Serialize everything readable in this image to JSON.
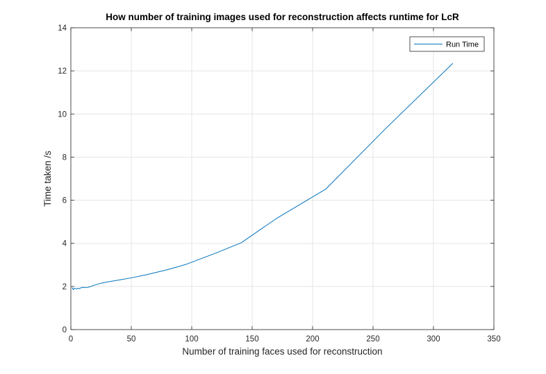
{
  "chart_data": {
    "type": "line",
    "title": "How number of training images used for reconstruction affects runtime for LcR",
    "xlabel": "Number of training faces used for reconstruction",
    "ylabel": "Time taken /s",
    "xlim": [
      0,
      350
    ],
    "ylim": [
      0,
      14
    ],
    "xticks": [
      0,
      50,
      100,
      150,
      200,
      250,
      300,
      350
    ],
    "yticks": [
      0,
      2,
      4,
      6,
      8,
      10,
      12,
      14
    ],
    "xtick_labels": [
      "0",
      "50",
      "100",
      "150",
      "200",
      "250",
      "300",
      "350"
    ],
    "ytick_labels": [
      "0",
      "2",
      "4",
      "6",
      "8",
      "10",
      "12",
      "14"
    ],
    "grid": true,
    "legend_position": "top-right",
    "series": [
      {
        "name": "Run Time",
        "color": "#0072bd",
        "x": [
          1,
          2,
          3,
          4,
          5,
          6,
          7,
          8,
          10,
          12,
          14,
          16,
          20,
          25,
          30,
          40,
          50,
          63,
          80,
          95,
          120,
          141,
          170,
          211,
          260,
          316
        ],
        "y": [
          1.95,
          1.85,
          1.92,
          1.9,
          1.89,
          1.91,
          1.9,
          1.93,
          1.96,
          1.95,
          1.96,
          1.99,
          2.07,
          2.15,
          2.21,
          2.3,
          2.4,
          2.55,
          2.78,
          3.02,
          3.55,
          4.03,
          5.15,
          6.52,
          9.3,
          12.35
        ]
      }
    ]
  }
}
